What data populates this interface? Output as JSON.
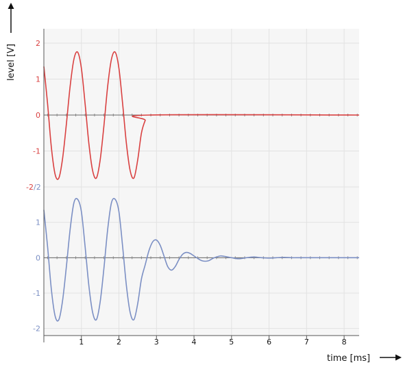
{
  "chart_data": {
    "type": "line",
    "xlabel": "time [ms]",
    "ylabel": "level [V]",
    "xlim": [
      0,
      8.4
    ],
    "x_ticks": [
      "1",
      "2",
      "3",
      "4",
      "5",
      "6",
      "7",
      "8"
    ],
    "grid": true,
    "panels": [
      {
        "color": "#d94040",
        "ylim": [
          -2,
          2.4
        ],
        "y_ticks": [
          {
            "value": 2,
            "label": "2"
          },
          {
            "value": 1,
            "label": "1"
          },
          {
            "value": 0,
            "label": "0"
          },
          {
            "value": -1,
            "label": "-1"
          },
          {
            "value": -2,
            "label": "-2"
          }
        ],
        "series": {
          "x": [
            0,
            0.1,
            0.2,
            0.3,
            0.4,
            0.5,
            0.6,
            0.7,
            0.8,
            0.9,
            1.0,
            1.1,
            1.2,
            1.3,
            1.4,
            1.5,
            1.6,
            1.7,
            1.8,
            1.9,
            2.0,
            2.1,
            2.2,
            2.3,
            2.4,
            2.5,
            2.6,
            2.7,
            2.8,
            8.4
          ],
          "y": [
            1.35,
            0.3,
            -0.9,
            -1.65,
            -1.75,
            -1.2,
            -0.25,
            0.8,
            1.55,
            1.75,
            1.3,
            0.3,
            -0.8,
            -1.55,
            -1.75,
            -1.25,
            -0.3,
            0.8,
            1.55,
            1.75,
            1.3,
            0.3,
            -0.8,
            -1.55,
            -1.75,
            -1.25,
            -0.5,
            -0.15,
            0,
            0
          ]
        }
      },
      {
        "color": "#7b8fc4",
        "ylim": [
          -2.2,
          2
        ],
        "y_ticks": [
          {
            "value": 2,
            "label": "2"
          },
          {
            "value": 1,
            "label": "1"
          },
          {
            "value": 0,
            "label": "0"
          },
          {
            "value": -1,
            "label": "-1"
          },
          {
            "value": -2,
            "label": "-2"
          }
        ],
        "series": {
          "x": [
            0,
            0.1,
            0.2,
            0.3,
            0.4,
            0.5,
            0.6,
            0.7,
            0.8,
            0.9,
            1.0,
            1.1,
            1.2,
            1.3,
            1.4,
            1.5,
            1.6,
            1.7,
            1.8,
            1.9,
            2.0,
            2.1,
            2.2,
            2.3,
            2.4,
            2.5,
            2.6,
            2.7,
            2.8,
            2.9,
            3.0,
            3.1,
            3.2,
            3.3,
            3.4,
            3.5,
            3.6,
            3.7,
            3.8,
            3.9,
            4.0,
            4.1,
            4.2,
            4.3,
            4.4,
            4.5,
            4.6,
            4.7,
            4.8,
            4.9,
            5.0,
            5.2,
            5.4,
            5.6,
            5.8,
            6.0,
            6.2,
            6.4,
            6.6,
            6.8,
            7.0,
            7.5,
            8.0,
            8.4
          ],
          "y": [
            1.35,
            0.3,
            -0.9,
            -1.65,
            -1.75,
            -1.2,
            -0.25,
            0.8,
            1.55,
            1.65,
            1.3,
            0.3,
            -0.8,
            -1.55,
            -1.75,
            -1.25,
            -0.3,
            0.8,
            1.55,
            1.65,
            1.3,
            0.3,
            -0.8,
            -1.55,
            -1.75,
            -1.3,
            -0.6,
            -0.2,
            0.2,
            0.45,
            0.5,
            0.35,
            0.05,
            -0.25,
            -0.35,
            -0.25,
            -0.05,
            0.1,
            0.15,
            0.12,
            0.05,
            -0.02,
            -0.08,
            -0.1,
            -0.08,
            -0.02,
            0.02,
            0.05,
            0.04,
            0.02,
            0.0,
            -0.03,
            0.0,
            0.02,
            0.0,
            -0.01,
            0.0,
            0.01,
            0.0,
            0.0,
            0.0,
            0.0,
            0.0,
            0.0
          ]
        }
      }
    ]
  }
}
